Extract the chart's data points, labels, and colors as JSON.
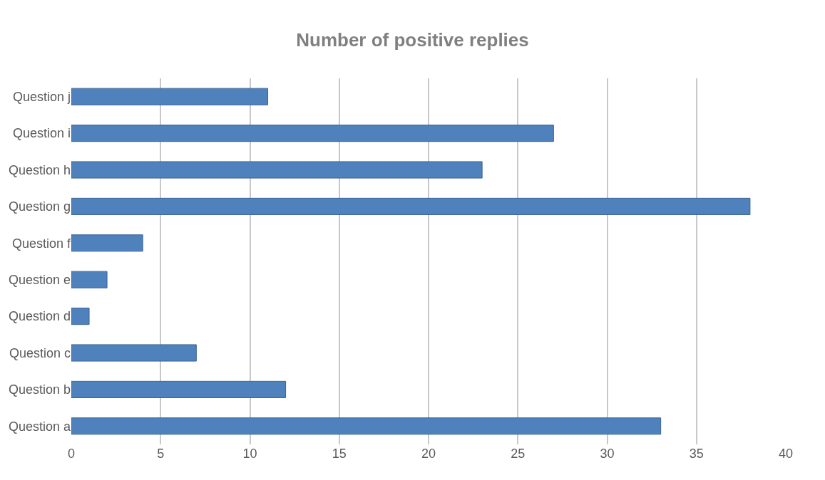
{
  "chart_data": {
    "type": "bar",
    "orientation": "horizontal",
    "title": "Number of positive replies",
    "categories": [
      "Question j",
      "Question i",
      "Question h",
      "Question g",
      "Question f",
      "Question e",
      "Question d",
      "Question c",
      "Question b",
      "Question a"
    ],
    "values": [
      11,
      27,
      23,
      38,
      4,
      2,
      1,
      7,
      12,
      33
    ],
    "color": "#4f81bd",
    "xlim": [
      0,
      40
    ],
    "xticks": [
      0,
      5,
      10,
      15,
      20,
      25,
      30,
      35,
      40
    ],
    "grid": "x",
    "legend": false
  }
}
